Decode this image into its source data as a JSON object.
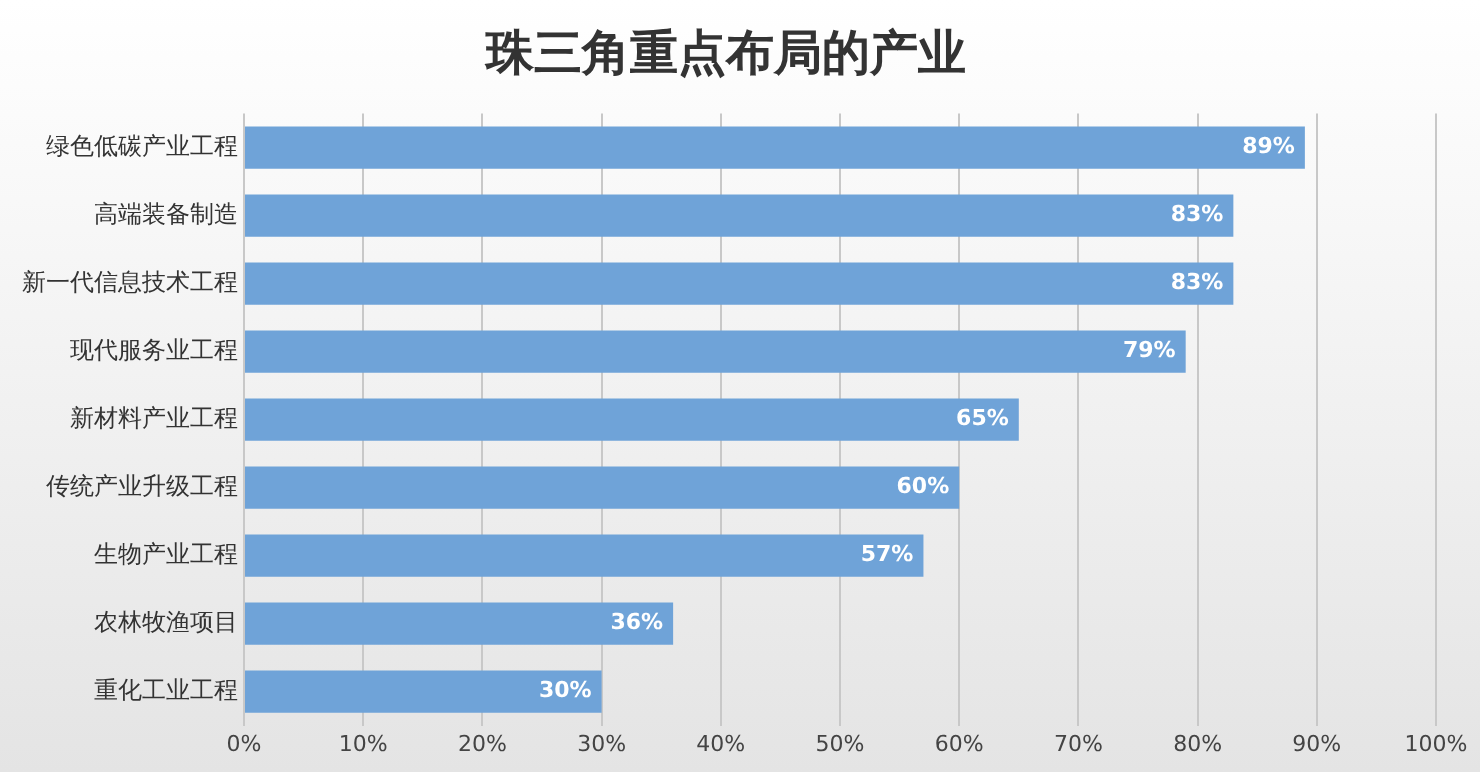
{
  "chart_data": {
    "type": "bar",
    "orientation": "horizontal",
    "title": "珠三角重点布局的产业",
    "categories": [
      "绿色低碳产业工程",
      "高端装备制造",
      "新一代信息技术工程",
      "现代服务业工程",
      "新材料产业工程",
      "传统产业升级工程",
      "生物产业工程",
      "农林牧渔项目",
      "重化工业工程"
    ],
    "values": [
      89,
      83,
      83,
      79,
      65,
      60,
      57,
      36,
      30
    ],
    "value_labels": [
      "89%",
      "83%",
      "83%",
      "79%",
      "65%",
      "60%",
      "57%",
      "36%",
      "30%"
    ],
    "color": "#6fa3d8",
    "xlim": [
      0,
      100
    ],
    "xticks": [
      {
        "value": 0,
        "label": "0%"
      },
      {
        "value": 10,
        "label": "10%"
      },
      {
        "value": 20,
        "label": "20%"
      },
      {
        "value": 30,
        "label": "30%"
      },
      {
        "value": 40,
        "label": "40%"
      },
      {
        "value": 50,
        "label": "50%"
      },
      {
        "value": 60,
        "label": "60%"
      },
      {
        "value": 70,
        "label": "70%"
      },
      {
        "value": 80,
        "label": "80%"
      },
      {
        "value": 90,
        "label": "90%"
      },
      {
        "value": 100,
        "label": "100%"
      }
    ],
    "grid": "x",
    "legend": false
  }
}
